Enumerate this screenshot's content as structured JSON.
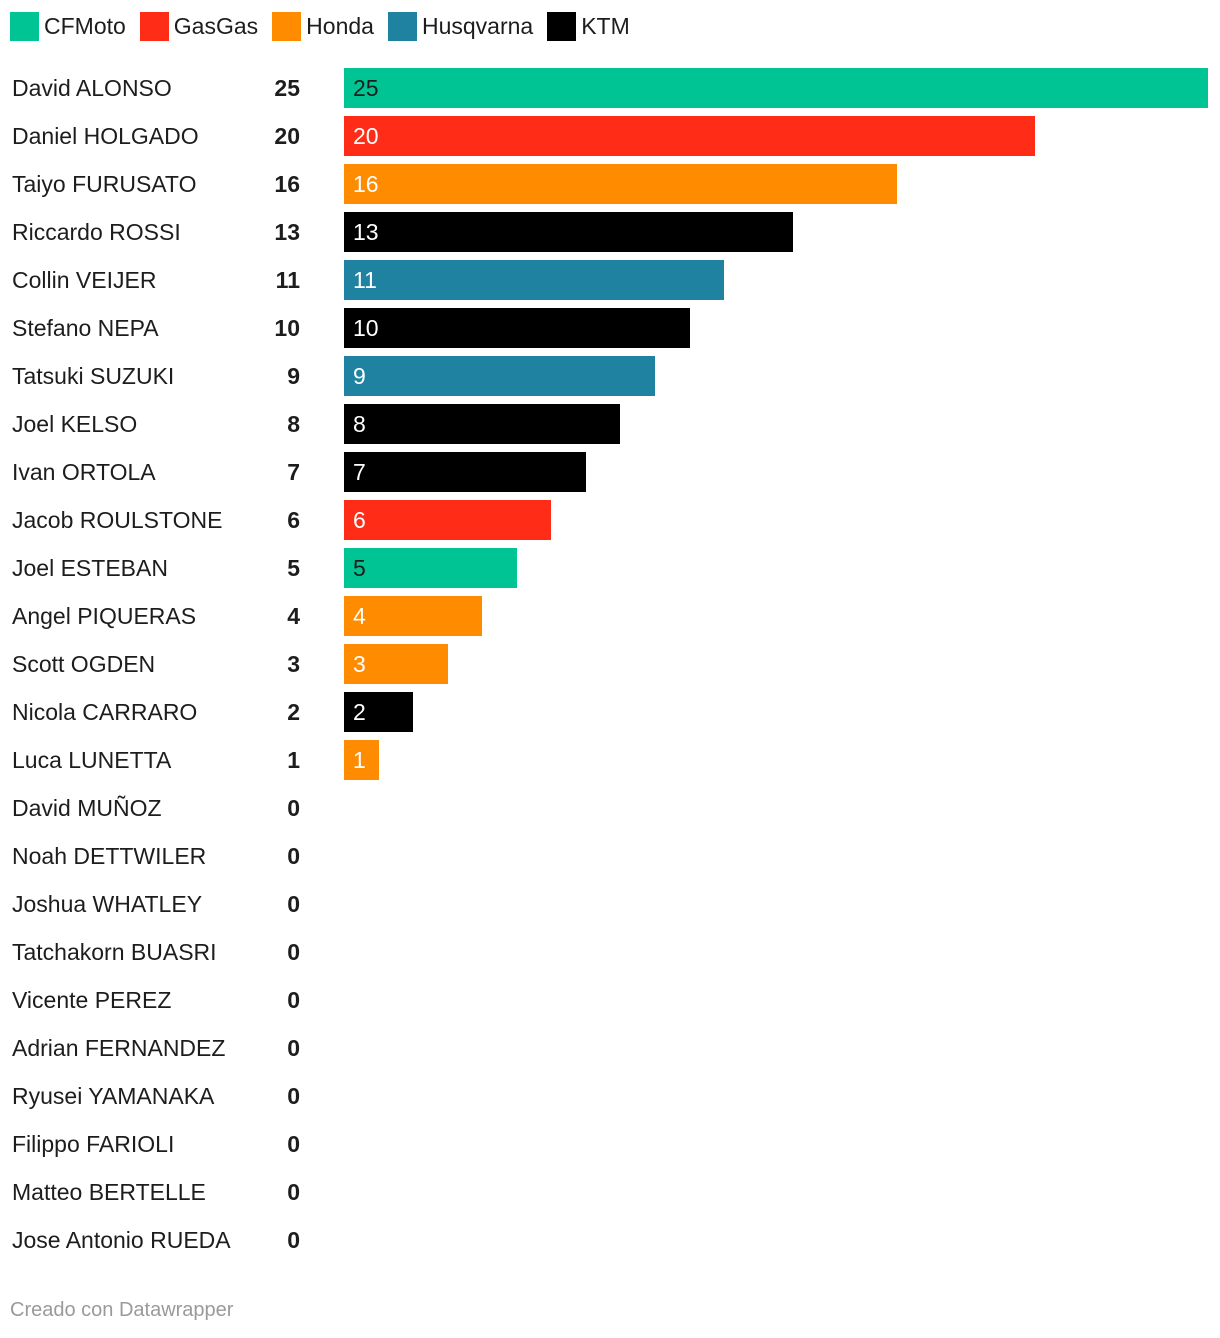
{
  "chart_data": {
    "type": "bar",
    "orientation": "horizontal",
    "xlim": [
      0,
      25
    ],
    "grid": false,
    "legend_position": "top-left",
    "legend": [
      {
        "name": "CFMoto",
        "color": "#00c493"
      },
      {
        "name": "GasGas",
        "color": "#ff2c17"
      },
      {
        "name": "Honda",
        "color": "#ff8b00"
      },
      {
        "name": "Husqvarna",
        "color": "#1f82a1"
      },
      {
        "name": "KTM",
        "color": "#000000"
      }
    ],
    "rows": [
      {
        "rider": "David ALONSO",
        "points": 25,
        "team": "CFMoto"
      },
      {
        "rider": "Daniel HOLGADO",
        "points": 20,
        "team": "GasGas"
      },
      {
        "rider": "Taiyo FURUSATO",
        "points": 16,
        "team": "Honda"
      },
      {
        "rider": "Riccardo ROSSI",
        "points": 13,
        "team": "KTM"
      },
      {
        "rider": "Collin VEIJER",
        "points": 11,
        "team": "Husqvarna"
      },
      {
        "rider": "Stefano NEPA",
        "points": 10,
        "team": "KTM"
      },
      {
        "rider": "Tatsuki SUZUKI",
        "points": 9,
        "team": "Husqvarna"
      },
      {
        "rider": "Joel KELSO",
        "points": 8,
        "team": "KTM"
      },
      {
        "rider": "Ivan ORTOLA",
        "points": 7,
        "team": "KTM"
      },
      {
        "rider": "Jacob ROULSTONE",
        "points": 6,
        "team": "GasGas"
      },
      {
        "rider": "Joel ESTEBAN",
        "points": 5,
        "team": "CFMoto"
      },
      {
        "rider": "Angel PIQUERAS",
        "points": 4,
        "team": "Honda"
      },
      {
        "rider": "Scott OGDEN",
        "points": 3,
        "team": "Honda"
      },
      {
        "rider": "Nicola CARRARO",
        "points": 2,
        "team": "KTM"
      },
      {
        "rider": "Luca LUNETTA",
        "points": 1,
        "team": "Honda"
      },
      {
        "rider": "David MUÑOZ",
        "points": 0,
        "team": null
      },
      {
        "rider": "Noah DETTWILER",
        "points": 0,
        "team": null
      },
      {
        "rider": "Joshua WHATLEY",
        "points": 0,
        "team": null
      },
      {
        "rider": "Tatchakorn BUASRI",
        "points": 0,
        "team": null
      },
      {
        "rider": "Vicente PEREZ",
        "points": 0,
        "team": null
      },
      {
        "rider": "Adrian FERNANDEZ",
        "points": 0,
        "team": null
      },
      {
        "rider": "Ryusei YAMANAKA",
        "points": 0,
        "team": null
      },
      {
        "rider": "Filippo FARIOLI",
        "points": 0,
        "team": null
      },
      {
        "rider": "Matteo BERTELLE",
        "points": 0,
        "team": null
      },
      {
        "rider": "Jose Antonio RUEDA",
        "points": 0,
        "team": null
      }
    ]
  },
  "footer": {
    "credit": "Creado con Datawrapper"
  }
}
